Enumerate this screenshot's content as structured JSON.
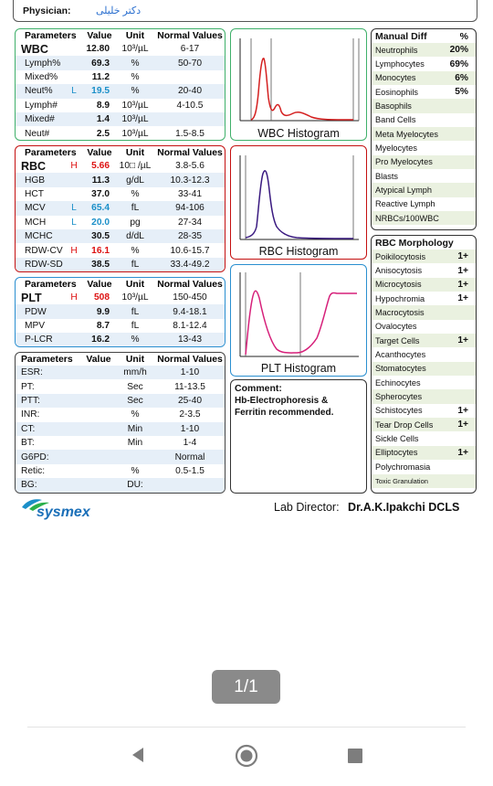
{
  "header": {
    "physician_label": "Physician:",
    "physician_name": "دکتر خلیلی"
  },
  "wbc_table": {
    "headers": [
      "Parameters",
      "Value",
      "Unit",
      "Normal Values"
    ],
    "rows": [
      {
        "p": "WBC",
        "f": "",
        "v": "12.80",
        "u": "10³/µL",
        "n": "6-17"
      },
      {
        "p": "Lymph%",
        "f": "",
        "v": "69.3",
        "u": "%",
        "n": "50-70"
      },
      {
        "p": "Mixed%",
        "f": "",
        "v": "11.2",
        "u": "%",
        "n": ""
      },
      {
        "p": "Neut%",
        "f": "L",
        "v": "19.5",
        "u": "%",
        "n": "20-40"
      },
      {
        "p": "Lymph#",
        "f": "",
        "v": "8.9",
        "u": "10³/µL",
        "n": "4-10.5"
      },
      {
        "p": "Mixed#",
        "f": "",
        "v": "1.4",
        "u": "10³/µL",
        "n": ""
      },
      {
        "p": "Neut#",
        "f": "",
        "v": "2.5",
        "u": "10³/µL",
        "n": "1.5-8.5"
      }
    ]
  },
  "rbc_table": {
    "headers": [
      "Parameters",
      "Value",
      "Unit",
      "Normal Values"
    ],
    "rows": [
      {
        "p": "RBC",
        "f": "H",
        "v": "5.66",
        "u": "10□ /µL",
        "n": "3.8-5.6"
      },
      {
        "p": "HGB",
        "f": "",
        "v": "11.3",
        "u": "g/dL",
        "n": "10.3-12.3"
      },
      {
        "p": "HCT",
        "f": "",
        "v": "37.0",
        "u": "%",
        "n": "33-41"
      },
      {
        "p": "MCV",
        "f": "L",
        "v": "65.4",
        "u": "fL",
        "n": "94-106"
      },
      {
        "p": "MCH",
        "f": "L",
        "v": "20.0",
        "u": "pg",
        "n": "27-34"
      },
      {
        "p": "MCHC",
        "f": "",
        "v": "30.5",
        "u": "d/dL",
        "n": "28-35"
      },
      {
        "p": "RDW-CV",
        "f": "H",
        "v": "16.1",
        "u": "%",
        "n": "10.6-15.7"
      },
      {
        "p": "RDW-SD",
        "f": "",
        "v": "38.5",
        "u": "fL",
        "n": "33.4-49.2"
      }
    ]
  },
  "plt_table": {
    "headers": [
      "Parameters",
      "Value",
      "Unit",
      "Normal Values"
    ],
    "rows": [
      {
        "p": "PLT",
        "f": "H",
        "v": "508",
        "u": "10³/µL",
        "n": "150-450"
      },
      {
        "p": "PDW",
        "f": "",
        "v": "9.9",
        "u": "fL",
        "n": "9.4-18.1"
      },
      {
        "p": "MPV",
        "f": "",
        "v": "8.7",
        "u": "fL",
        "n": "8.1-12.4"
      },
      {
        "p": "P-LCR",
        "f": "",
        "v": "16.2",
        "u": "%",
        "n": "13-43"
      }
    ]
  },
  "other_table": {
    "headers": [
      "Parameters",
      "Value",
      "Unit",
      "Normal Values"
    ],
    "rows": [
      {
        "p": "ESR:",
        "v": "",
        "u": "mm/h",
        "n": "1-10"
      },
      {
        "p": "PT:",
        "v": "",
        "u": "Sec",
        "n": "11-13.5"
      },
      {
        "p": "PTT:",
        "v": "",
        "u": "Sec",
        "n": "25-40"
      },
      {
        "p": "INR:",
        "v": "",
        "u": "%",
        "n": "2-3.5"
      },
      {
        "p": "CT:",
        "v": "",
        "u": "Min",
        "n": "1-10"
      },
      {
        "p": "BT:",
        "v": "",
        "u": "Min",
        "n": "1-4"
      },
      {
        "p": "G6PD:",
        "v": "",
        "u": "",
        "n": "Normal"
      },
      {
        "p": "Retic:",
        "v": "",
        "u": "%",
        "n": "0.5-1.5"
      },
      {
        "p": "BG:",
        "v": "",
        "u": "DU:",
        "n": ""
      }
    ]
  },
  "histograms": {
    "wbc": "WBC Histogram",
    "rbc": "RBC Histogram",
    "plt": "PLT Histogram"
  },
  "comment": {
    "label": "Comment:",
    "text": "Hb-Electrophoresis & Ferritin recommended."
  },
  "manual_diff": {
    "title": "Manual Diff",
    "pct": "%",
    "rows": [
      {
        "n": "Neutrophils",
        "v": "20%"
      },
      {
        "n": "Lymphocytes",
        "v": "69%"
      },
      {
        "n": "Monocytes",
        "v": "6%"
      },
      {
        "n": "Eosinophils",
        "v": "5%"
      },
      {
        "n": "Basophils",
        "v": ""
      },
      {
        "n": "Band Cells",
        "v": ""
      },
      {
        "n": "Meta Myelocytes",
        "v": ""
      },
      {
        "n": "Myelocytes",
        "v": ""
      },
      {
        "n": "Pro Myelocytes",
        "v": ""
      },
      {
        "n": "Blasts",
        "v": ""
      },
      {
        "n": "Atypical Lymph",
        "v": ""
      },
      {
        "n": "Reactive Lymph",
        "v": ""
      },
      {
        "n": "NRBCs/100WBC",
        "v": ""
      }
    ]
  },
  "rbc_morphology": {
    "title": "RBC Morphology",
    "rows": [
      {
        "n": "Poikilocytosis",
        "v": "1+"
      },
      {
        "n": "Anisocytosis",
        "v": "1+"
      },
      {
        "n": "Microcytosis",
        "v": "1+"
      },
      {
        "n": "Hypochromia",
        "v": "1+"
      },
      {
        "n": "Macrocytosis",
        "v": ""
      },
      {
        "n": "Ovalocytes",
        "v": ""
      },
      {
        "n": "Target Cells",
        "v": "1+"
      },
      {
        "n": "Acanthocytes",
        "v": ""
      },
      {
        "n": "Stomatocytes",
        "v": ""
      },
      {
        "n": "Echinocytes",
        "v": ""
      },
      {
        "n": "Spherocytes",
        "v": ""
      },
      {
        "n": "Schistocytes",
        "v": "1+"
      },
      {
        "n": "Tear Drop Cells",
        "v": "1+"
      },
      {
        "n": "Sickle Cells",
        "v": ""
      },
      {
        "n": "Elliptocytes",
        "v": "1+"
      },
      {
        "n": "Polychromasia",
        "v": ""
      },
      {
        "n": "Toxic Granulation",
        "v": ""
      }
    ]
  },
  "footer": {
    "brand": "sysmex",
    "director_label": "Lab Director:",
    "director_name": "Dr.A.K.Ipakchi DCLS"
  },
  "viewer": {
    "page_indicator": "1/1"
  },
  "colors": {
    "wbc_border": "#3fb06a",
    "rbc_border": "#c41010",
    "plt_border": "#2a8fd0",
    "wbc_curve": "#d42020",
    "rbc_curve": "#3a1a80",
    "plt_curve": "#d6207a"
  }
}
